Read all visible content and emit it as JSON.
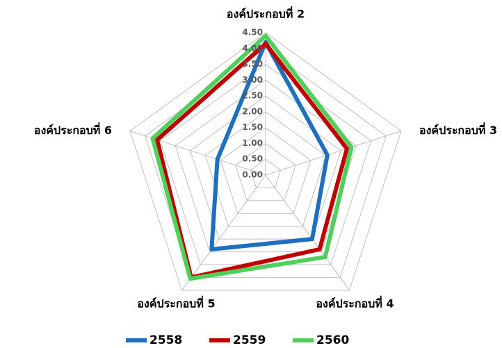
{
  "chart_data": {
    "type": "radar",
    "categories": [
      "องค์ประกอบที่ 2",
      "องค์ประกอบที่ 3",
      "องค์ประกอบที่ 4",
      "องค์ประกอบที่ 5",
      "องค์ประกอบที่ 6"
    ],
    "ylim": [
      0,
      4.5
    ],
    "yticks": [
      {
        "value": 0,
        "label": "0.00"
      },
      {
        "value": 0.5,
        "label": "0.50"
      },
      {
        "value": 1,
        "label": "1.00"
      },
      {
        "value": 1.5,
        "label": "1.50"
      },
      {
        "value": 2,
        "label": "2.00"
      },
      {
        "value": 2.5,
        "label": "2.50"
      },
      {
        "value": 3,
        "label": "3.00"
      },
      {
        "value": 3.5,
        "label": "3.50"
      },
      {
        "value": 4,
        "label": "4.00"
      },
      {
        "value": 4.5,
        "label": "4.50"
      }
    ],
    "grid": true,
    "legend": "bottom",
    "series": [
      {
        "name": "2558",
        "color": "#1f6fbf",
        "values": [
          4.2,
          2.05,
          2.5,
          2.9,
          1.6
        ]
      },
      {
        "name": "2559",
        "color": "#c00000",
        "values": [
          4.15,
          2.7,
          2.9,
          4.0,
          3.6
        ]
      },
      {
        "name": "2560",
        "color": "#4fd05a",
        "values": [
          4.4,
          2.85,
          3.2,
          4.05,
          3.75
        ]
      }
    ]
  }
}
